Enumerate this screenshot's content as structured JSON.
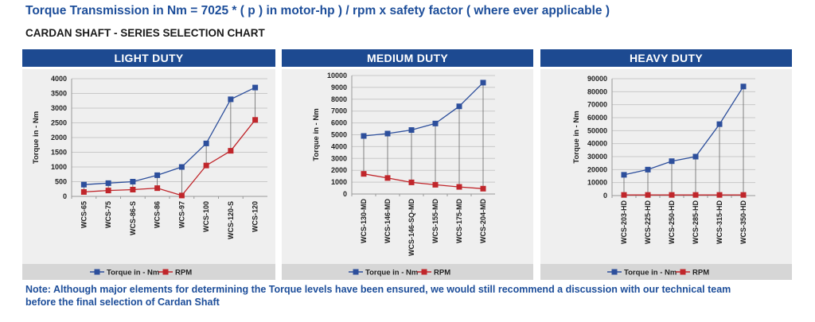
{
  "header": {
    "formula": "Torque Transmission in Nm = 7025 * ( p ) in motor-hp ) / rpm x safety factor  ( where ever applicable )",
    "subtitle": "CARDAN SHAFT  -  SERIES SELECTION CHART"
  },
  "note": "Note: Although major elements for determining the Torque levels have been ensured, we would still recommend a discussion with our technical team before the final selection of Cardan Shaft",
  "colors": {
    "header_bg": "#1d4a91",
    "torque": "#2d4f9c",
    "rpm": "#c0262b",
    "panel_bg": "#efefef",
    "legend_bg": "#d6d6d6"
  },
  "chart_data": [
    {
      "type": "line",
      "title": "LIGHT DUTY",
      "ylabel": "Torque in - Nm",
      "ylim": [
        0,
        4000
      ],
      "yticks": [
        "0",
        "500",
        "1000",
        "1500",
        "2000",
        "2500",
        "3000",
        "3500",
        "4000"
      ],
      "categories": [
        "WCS-65",
        "WCS-75",
        "WCS-86-S",
        "WCS-86",
        "WCS-97",
        "WCS-100",
        "WCS-120-S",
        "WCS-120"
      ],
      "series": [
        {
          "name": "Torque in - Nm",
          "values": [
            400,
            450,
            500,
            720,
            1000,
            1800,
            3300,
            3700
          ]
        },
        {
          "name": "RPM",
          "values": [
            150,
            200,
            230,
            280,
            30,
            1050,
            1550,
            2600
          ]
        }
      ],
      "legend_position": "bottom",
      "grid": true
    },
    {
      "type": "line",
      "title": "MEDIUM DUTY",
      "ylabel": "Torque in - Nm",
      "ylim": [
        0,
        10000
      ],
      "yticks": [
        "0",
        "1000",
        "2000",
        "3000",
        "4000",
        "5000",
        "6000",
        "7000",
        "8000",
        "9000",
        "10000"
      ],
      "categories": [
        "WCS-130-MD",
        "WCS-146-MD",
        "WCS-146-SQ-MD",
        "WCS-155-MD",
        "WCS-175-MD",
        "WCS-204-MD"
      ],
      "series": [
        {
          "name": "Torque in - Nm",
          "values": [
            4900,
            5100,
            5400,
            5950,
            7400,
            9400
          ]
        },
        {
          "name": "RPM",
          "values": [
            1700,
            1350,
            980,
            780,
            600,
            450
          ]
        }
      ],
      "legend_position": "bottom",
      "grid": true
    },
    {
      "type": "line",
      "title": "HEAVY DUTY",
      "ylabel": "Torque in - Nm",
      "ylim": [
        0,
        90000
      ],
      "yticks": [
        "0",
        "10000",
        "20000",
        "30000",
        "40000",
        "50000",
        "60000",
        "70000",
        "80000",
        "90000"
      ],
      "categories": [
        "WCS-203-HD",
        "WCS-225-HD",
        "WCS-250-HD",
        "WCS-285-HD",
        "WCS-315-HD",
        "WCS-350-HD"
      ],
      "series": [
        {
          "name": "Torque in - Nm",
          "values": [
            16000,
            20000,
            26500,
            30000,
            55000,
            84000
          ]
        },
        {
          "name": "RPM",
          "values": [
            500,
            500,
            500,
            500,
            500,
            500
          ]
        }
      ],
      "legend_position": "bottom",
      "grid": true
    }
  ]
}
